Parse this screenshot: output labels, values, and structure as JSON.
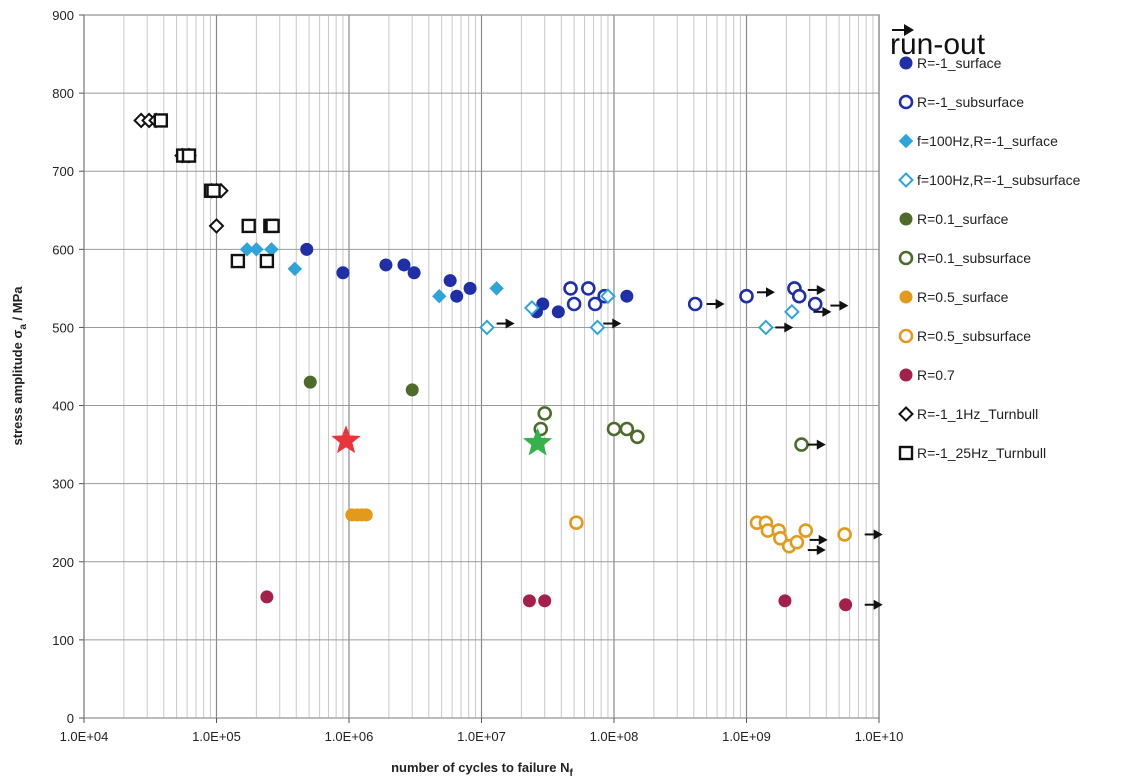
{
  "chart_data": {
    "type": "scatter",
    "title": "",
    "xlabel": "number of cycles to failure N",
    "xlabel_subscript": "f",
    "ylabel": "stress amplitude σ",
    "ylabel_subscript": "a",
    "ylabel_unit": " / MPa",
    "xscale": "log",
    "xlim": [
      10000,
      10000000000
    ],
    "ylim": [
      0,
      900
    ],
    "x_tick_labels": [
      "1.0E+04",
      "1.0E+05",
      "1.0E+06",
      "1.0E+07",
      "1.0E+08",
      "1.0E+09",
      "1.0E+10"
    ],
    "y_ticks": [
      0,
      100,
      200,
      300,
      400,
      500,
      600,
      700,
      800,
      900
    ],
    "grid": true,
    "legend_position": "right",
    "runout_label": "run-out",
    "series": [
      {
        "name": "R=-1_surface",
        "marker": "circle",
        "fill": "#1f2fa8",
        "stroke": "#1f2fa8",
        "points": [
          [
            480000,
            600
          ],
          [
            900000,
            570
          ],
          [
            1900000,
            580
          ],
          [
            2600000,
            580
          ],
          [
            3100000,
            570
          ],
          [
            5800000,
            560
          ],
          [
            6500000,
            540
          ],
          [
            8200000,
            550
          ],
          [
            26000000,
            520
          ],
          [
            29000000,
            530
          ],
          [
            38000000,
            520
          ],
          [
            125000000,
            540
          ]
        ]
      },
      {
        "name": "R=-1_subsurface",
        "marker": "circle-open",
        "fill": "#ffffff",
        "stroke": "#1f2fa8",
        "points": [
          [
            47000000,
            550
          ],
          [
            50000000,
            530
          ],
          [
            64000000,
            550
          ],
          [
            72000000,
            530
          ],
          [
            85000000,
            540
          ],
          [
            410000000,
            530
          ],
          [
            1000000000,
            540
          ],
          [
            2300000000,
            550
          ],
          [
            2500000000,
            540
          ],
          [
            3300000000,
            530
          ]
        ]
      },
      {
        "name": "f=100Hz,R=-1_surface",
        "marker": "diamond",
        "fill": "#2ea4d8",
        "stroke": "#2ea4d8",
        "points": [
          [
            170000,
            600
          ],
          [
            200000,
            600
          ],
          [
            260000,
            600
          ],
          [
            390000,
            575
          ],
          [
            4800000,
            540
          ],
          [
            13000000,
            550
          ]
        ]
      },
      {
        "name": "f=100Hz,R=-1_subsurface",
        "marker": "diamond-open",
        "fill": "#ffffff",
        "stroke": "#2ea4d8",
        "points": [
          [
            11000000,
            500
          ],
          [
            24000000,
            525
          ],
          [
            75000000,
            500
          ],
          [
            90000000,
            540
          ],
          [
            1400000000,
            500
          ],
          [
            2200000000,
            520
          ]
        ]
      },
      {
        "name": "R=0.1_surface",
        "marker": "circle",
        "fill": "#4d6b2a",
        "stroke": "#4d6b2a",
        "points": [
          [
            510000,
            430
          ],
          [
            3000000,
            420
          ]
        ]
      },
      {
        "name": "R=0.1_subsurface",
        "marker": "circle-open",
        "fill": "#ffffff",
        "stroke": "#4d6b2a",
        "points": [
          [
            30000000,
            390
          ],
          [
            28000000,
            370
          ],
          [
            100000000,
            370
          ],
          [
            125000000,
            370
          ],
          [
            150000000,
            360
          ],
          [
            2600000000,
            350
          ]
        ]
      },
      {
        "name": "R=0.5_surface",
        "marker": "circle",
        "fill": "#e39a1c",
        "stroke": "#e39a1c",
        "points": [
          [
            1050000,
            260
          ],
          [
            1150000,
            260
          ],
          [
            1250000,
            260
          ],
          [
            1350000,
            260
          ]
        ]
      },
      {
        "name": "R=0.5_subsurface",
        "marker": "circle-open",
        "fill": "#ffffff",
        "stroke": "#e39a1c",
        "points": [
          [
            52000000,
            250
          ],
          [
            1200000000,
            250
          ],
          [
            1400000000,
            250
          ],
          [
            1450000000,
            240
          ],
          [
            1750000000,
            240
          ],
          [
            1800000000,
            230
          ],
          [
            2100000000,
            220
          ],
          [
            2400000000,
            225
          ],
          [
            2800000000,
            240
          ],
          [
            5500000000,
            235
          ]
        ]
      },
      {
        "name": "R=0.7",
        "marker": "circle",
        "fill": "#a3204a",
        "stroke": "#a3204a",
        "points": [
          [
            240000,
            155
          ],
          [
            23000000,
            150
          ],
          [
            30000000,
            150
          ],
          [
            1950000000,
            150
          ],
          [
            5600000000,
            145
          ]
        ]
      },
      {
        "name": "R=-1_1Hz_Turnbull",
        "marker": "diamond-open",
        "fill": "#ffffff",
        "stroke": "#111111",
        "points": [
          [
            27000,
            765
          ],
          [
            31000,
            765
          ],
          [
            35000,
            765
          ],
          [
            55000,
            720
          ],
          [
            62000,
            720
          ],
          [
            92000,
            675
          ],
          [
            100000,
            675
          ],
          [
            108000,
            675
          ],
          [
            100000,
            630
          ]
        ]
      },
      {
        "name": "R=-1_25Hz_Turnbull",
        "marker": "square-open",
        "fill": "#ffffff",
        "stroke": "#111111",
        "points": [
          [
            38000,
            765
          ],
          [
            56000,
            720
          ],
          [
            62000,
            720
          ],
          [
            91000,
            675
          ],
          [
            95000,
            675
          ],
          [
            175000,
            630
          ],
          [
            255000,
            630
          ],
          [
            265000,
            630
          ],
          [
            145000,
            585
          ],
          [
            240000,
            585
          ]
        ]
      }
    ],
    "runouts": [
      [
        13000000,
        505
      ],
      [
        500000000,
        530
      ],
      [
        1200000000,
        545
      ],
      [
        1650000000,
        500
      ],
      [
        2900000000,
        548
      ],
      [
        3200000000,
        520
      ],
      [
        4300000000,
        528
      ],
      [
        2900000000,
        350
      ],
      [
        7800000000,
        235
      ],
      [
        3000000000,
        228
      ],
      [
        2900000000,
        215
      ],
      [
        7800000000,
        145
      ],
      [
        83000000,
        505
      ]
    ],
    "highlights": [
      {
        "x": 950000,
        "y": 355,
        "color": "#e8343a"
      },
      {
        "x": 26500000,
        "y": 352,
        "color": "#35b24a"
      }
    ]
  }
}
